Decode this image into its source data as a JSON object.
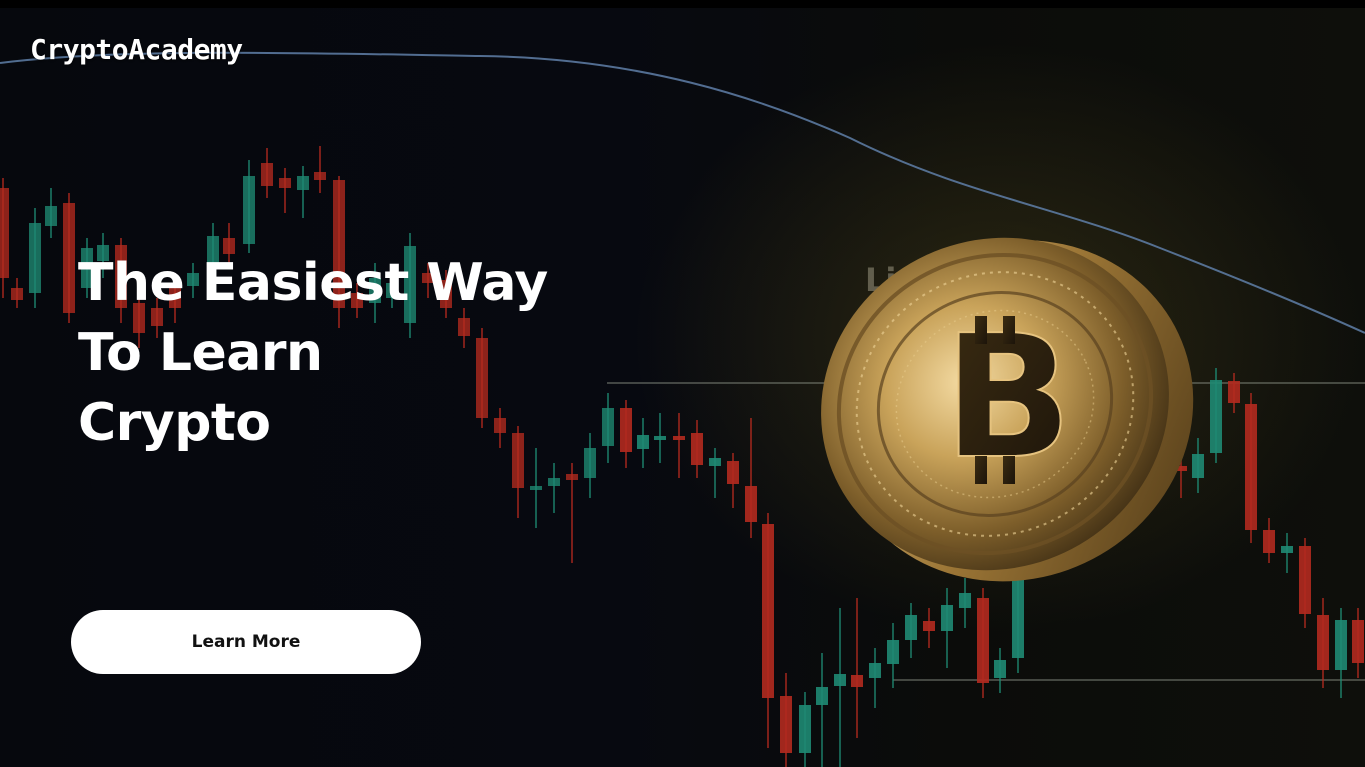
{
  "brand": {
    "name": "CryptoAcademy"
  },
  "hero": {
    "headline_lines": [
      "The Easiest Way",
      "To Learn",
      "Crypto"
    ],
    "cta_label": "Learn More",
    "background_label": "Lig"
  },
  "colors": {
    "background": "#000000",
    "text": "#ffffff",
    "button_bg": "#ffffff",
    "button_text": "#111111",
    "candle_up": "#1f8a73",
    "candle_down": "#b32a1f",
    "trend_line": "#5f7fa8",
    "coin_gold": "#c9a35a"
  },
  "icons": {
    "coin": "bitcoin-coin-icon"
  }
}
